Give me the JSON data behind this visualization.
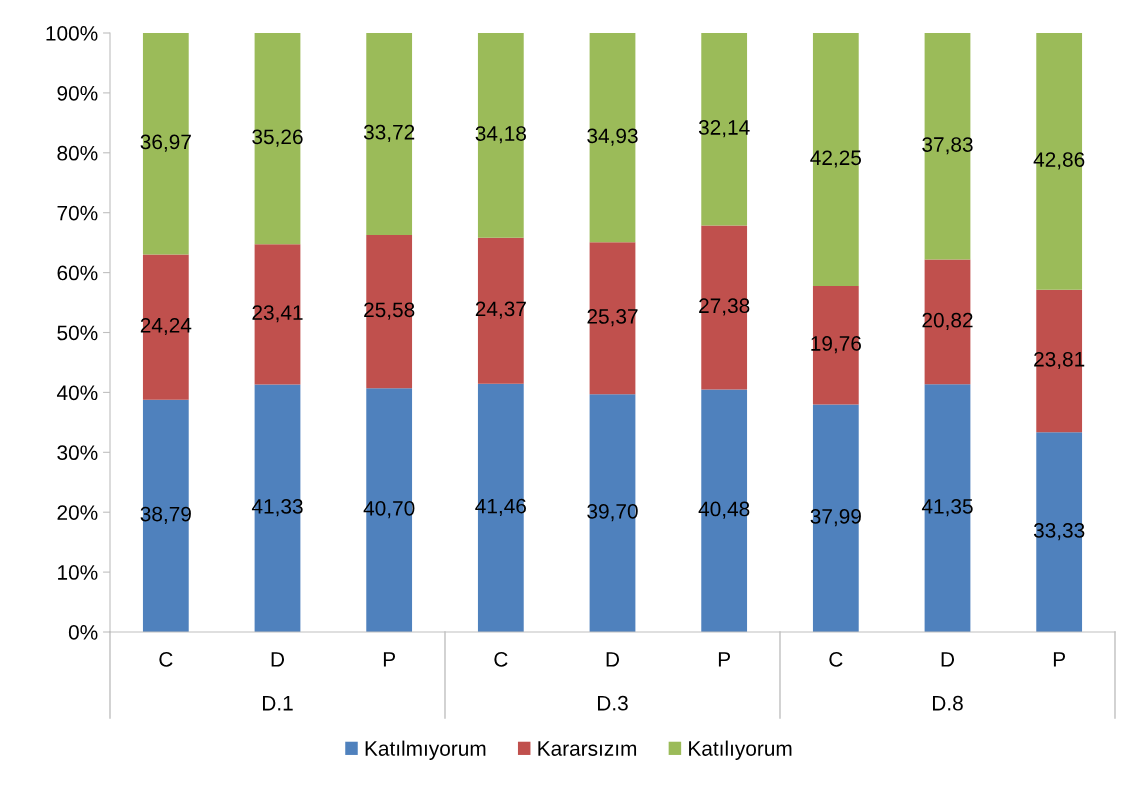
{
  "chart_data": {
    "type": "bar",
    "stacked": true,
    "categories": [
      "C",
      "D",
      "P",
      "C",
      "D",
      "P",
      "C",
      "D",
      "P"
    ],
    "annotations": [
      "D.1",
      "D.3",
      "D.8"
    ],
    "series": [
      {
        "name": "Katılmıyorum",
        "color": "#4f81bd",
        "values": [
          38.79,
          41.33,
          40.7,
          41.46,
          39.7,
          40.48,
          37.99,
          41.35,
          33.33
        ],
        "value_labels": [
          "38,79",
          "41,33",
          "40,70",
          "41,46",
          "39,70",
          "40,48",
          "37,99",
          "41,35",
          "33,33"
        ]
      },
      {
        "name": "Kararsızım",
        "color": "#c0504d",
        "values": [
          24.24,
          23.41,
          25.58,
          24.37,
          25.37,
          27.38,
          19.76,
          20.82,
          23.81
        ],
        "value_labels": [
          "24,24",
          "23,41",
          "25,58",
          "24,37",
          "25,37",
          "27,38",
          "19,76",
          "20,82",
          "23,81"
        ]
      },
      {
        "name": "Katılıyorum",
        "color": "#9bbb59",
        "values": [
          36.97,
          35.26,
          33.72,
          34.18,
          34.93,
          32.14,
          42.25,
          37.83,
          42.86
        ],
        "value_labels": [
          "36,97",
          "35,26",
          "33,72",
          "34,18",
          "34,93",
          "32,14",
          "42,25",
          "37,83",
          "42,86"
        ]
      }
    ],
    "ylim": [
      0,
      100
    ],
    "yticks": [
      {
        "value": 0,
        "label": "0%"
      },
      {
        "value": 10,
        "label": "10%"
      },
      {
        "value": 20,
        "label": "20%"
      },
      {
        "value": 30,
        "label": "30%"
      },
      {
        "value": 40,
        "label": "40%"
      },
      {
        "value": 50,
        "label": "50%"
      },
      {
        "value": 60,
        "label": "60%"
      },
      {
        "value": 70,
        "label": "70%"
      },
      {
        "value": 80,
        "label": "80%"
      },
      {
        "value": 90,
        "label": "90%"
      },
      {
        "value": 100,
        "label": "100%"
      }
    ],
    "legend": "bottom"
  }
}
